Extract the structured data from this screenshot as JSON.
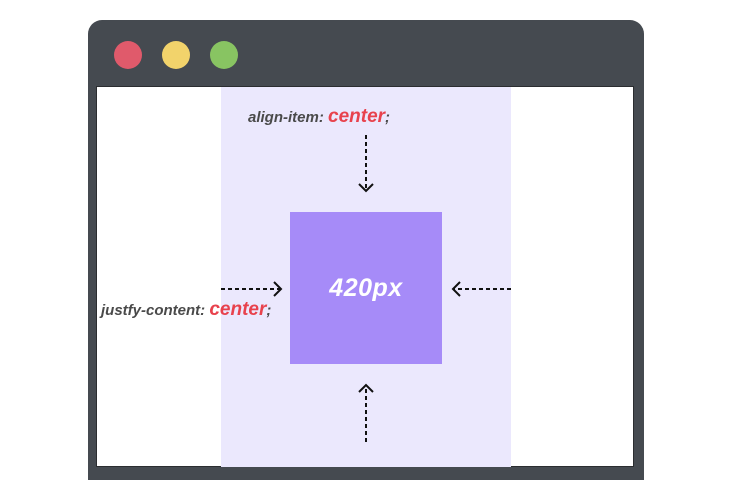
{
  "window": {
    "traffic_lights": {
      "close_color": "#e05a6b",
      "minimize_color": "#f2d36b",
      "zoom_color": "#88c462"
    }
  },
  "diagram": {
    "box_label": "420px",
    "align_label": {
      "property": "align-item: ",
      "value": "center",
      "terminator": ";"
    },
    "justify_label": {
      "property": "justfy-content: ",
      "value": "center",
      "terminator": ";"
    },
    "colors": {
      "column": "#ebe8fd",
      "box": "#a68bf8",
      "keyword": "#e8424d",
      "text": "#4a4a4a"
    }
  }
}
